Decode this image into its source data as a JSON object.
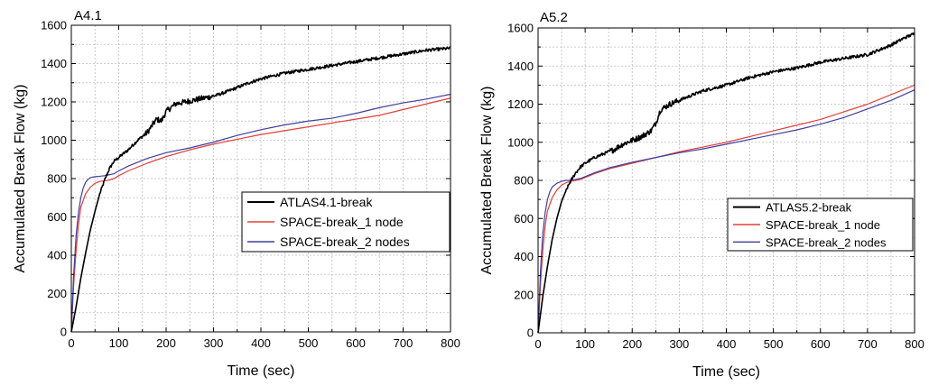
{
  "chart_data": [
    {
      "type": "line",
      "title": "A4.1",
      "xlabel": "Time (sec)",
      "ylabel": "Accumulated Break Flow (kg)",
      "xlim": [
        0,
        800
      ],
      "ylim": [
        0,
        1600
      ],
      "x_ticks": [
        "0",
        "100",
        "200",
        "300",
        "400",
        "500",
        "600",
        "700",
        "800"
      ],
      "y_ticks": [
        "0",
        "200",
        "400",
        "600",
        "800",
        "1000",
        "1200",
        "1400",
        "1600"
      ],
      "grid": true,
      "legend_position": "bottom-right",
      "series": [
        {
          "name": "ATLAS4.1-break",
          "color": "#000000",
          "noisy": true,
          "points": [
            [
              0,
              0
            ],
            [
              10,
              130
            ],
            [
              20,
              280
            ],
            [
              30,
              410
            ],
            [
              40,
              530
            ],
            [
              50,
              630
            ],
            [
              60,
              720
            ],
            [
              70,
              790
            ],
            [
              80,
              850
            ],
            [
              90,
              890
            ],
            [
              100,
              910
            ],
            [
              120,
              950
            ],
            [
              140,
              1000
            ],
            [
              160,
              1040
            ],
            [
              180,
              1110
            ],
            [
              190,
              1100
            ],
            [
              200,
              1150
            ],
            [
              220,
              1190
            ],
            [
              240,
              1200
            ],
            [
              260,
              1210
            ],
            [
              280,
              1220
            ],
            [
              300,
              1230
            ],
            [
              325,
              1250
            ],
            [
              350,
              1275
            ],
            [
              375,
              1300
            ],
            [
              400,
              1320
            ],
            [
              450,
              1350
            ],
            [
              500,
              1370
            ],
            [
              550,
              1390
            ],
            [
              600,
              1410
            ],
            [
              650,
              1430
            ],
            [
              700,
              1450
            ],
            [
              750,
              1470
            ],
            [
              800,
              1480
            ]
          ]
        },
        {
          "name": "SPACE-break_1 node",
          "color": "#e0403a",
          "noisy": false,
          "points": [
            [
              0,
              0
            ],
            [
              5,
              250
            ],
            [
              10,
              420
            ],
            [
              15,
              560
            ],
            [
              20,
              650
            ],
            [
              30,
              720
            ],
            [
              40,
              755
            ],
            [
              50,
              775
            ],
            [
              60,
              785
            ],
            [
              70,
              788
            ],
            [
              80,
              792
            ],
            [
              90,
              800
            ],
            [
              100,
              815
            ],
            [
              120,
              840
            ],
            [
              140,
              860
            ],
            [
              160,
              880
            ],
            [
              200,
              915
            ],
            [
              250,
              950
            ],
            [
              300,
              980
            ],
            [
              350,
              1005
            ],
            [
              400,
              1030
            ],
            [
              450,
              1050
            ],
            [
              500,
              1070
            ],
            [
              550,
              1090
            ],
            [
              600,
              1110
            ],
            [
              650,
              1130
            ],
            [
              700,
              1160
            ],
            [
              750,
              1190
            ],
            [
              800,
              1220
            ]
          ]
        },
        {
          "name": "SPACE-break_2 nodes",
          "color": "#3f3fa0",
          "noisy": false,
          "points": [
            [
              0,
              0
            ],
            [
              5,
              300
            ],
            [
              10,
              500
            ],
            [
              15,
              620
            ],
            [
              20,
              700
            ],
            [
              25,
              750
            ],
            [
              30,
              780
            ],
            [
              35,
              795
            ],
            [
              40,
              805
            ],
            [
              50,
              810
            ],
            [
              60,
              812
            ],
            [
              70,
              815
            ],
            [
              80,
              820
            ],
            [
              90,
              825
            ],
            [
              100,
              840
            ],
            [
              120,
              865
            ],
            [
              140,
              885
            ],
            [
              160,
              905
            ],
            [
              200,
              935
            ],
            [
              250,
              960
            ],
            [
              300,
              990
            ],
            [
              350,
              1025
            ],
            [
              400,
              1055
            ],
            [
              450,
              1080
            ],
            [
              500,
              1100
            ],
            [
              550,
              1115
            ],
            [
              600,
              1140
            ],
            [
              650,
              1170
            ],
            [
              700,
              1195
            ],
            [
              750,
              1215
            ],
            [
              800,
              1240
            ]
          ]
        }
      ]
    },
    {
      "type": "line",
      "title": "A5.2",
      "xlabel": "Time (sec)",
      "ylabel": "Accumulated Break Flow (kg)",
      "xlim": [
        0,
        800
      ],
      "ylim": [
        0,
        1600
      ],
      "x_ticks": [
        "0",
        "100",
        "200",
        "300",
        "400",
        "500",
        "600",
        "700",
        "800"
      ],
      "y_ticks": [
        "0",
        "200",
        "400",
        "600",
        "800",
        "1000",
        "1200",
        "1400",
        "1600"
      ],
      "grid": true,
      "legend_position": "bottom-right",
      "series": [
        {
          "name": "ATLAS5.2-break",
          "color": "#000000",
          "noisy": true,
          "points": [
            [
              0,
              0
            ],
            [
              10,
              190
            ],
            [
              20,
              350
            ],
            [
              30,
              490
            ],
            [
              40,
              600
            ],
            [
              50,
              690
            ],
            [
              60,
              750
            ],
            [
              70,
              800
            ],
            [
              80,
              840
            ],
            [
              90,
              870
            ],
            [
              100,
              890
            ],
            [
              120,
              920
            ],
            [
              140,
              940
            ],
            [
              160,
              960
            ],
            [
              180,
              990
            ],
            [
              200,
              1010
            ],
            [
              220,
              1030
            ],
            [
              240,
              1060
            ],
            [
              250,
              1100
            ],
            [
              260,
              1170
            ],
            [
              280,
              1200
            ],
            [
              300,
              1220
            ],
            [
              350,
              1270
            ],
            [
              400,
              1300
            ],
            [
              450,
              1340
            ],
            [
              500,
              1370
            ],
            [
              550,
              1390
            ],
            [
              600,
              1420
            ],
            [
              650,
              1440
            ],
            [
              700,
              1460
            ],
            [
              720,
              1480
            ],
            [
              750,
              1510
            ],
            [
              780,
              1550
            ],
            [
              800,
              1570
            ]
          ]
        },
        {
          "name": "SPACE-break_1 node",
          "color": "#e0403a",
          "noisy": false,
          "points": [
            [
              0,
              0
            ],
            [
              5,
              250
            ],
            [
              10,
              430
            ],
            [
              15,
              560
            ],
            [
              20,
              640
            ],
            [
              30,
              710
            ],
            [
              40,
              750
            ],
            [
              50,
              775
            ],
            [
              60,
              788
            ],
            [
              70,
              795
            ],
            [
              80,
              800
            ],
            [
              90,
              805
            ],
            [
              100,
              815
            ],
            [
              120,
              835
            ],
            [
              150,
              860
            ],
            [
              200,
              890
            ],
            [
              250,
              920
            ],
            [
              300,
              950
            ],
            [
              350,
              975
            ],
            [
              400,
              1000
            ],
            [
              450,
              1030
            ],
            [
              500,
              1060
            ],
            [
              550,
              1090
            ],
            [
              600,
              1120
            ],
            [
              650,
              1160
            ],
            [
              700,
              1200
            ],
            [
              750,
              1250
            ],
            [
              800,
              1300
            ]
          ]
        },
        {
          "name": "SPACE-break_2 nodes",
          "color": "#3f3fa0",
          "noisy": false,
          "points": [
            [
              0,
              0
            ],
            [
              5,
              320
            ],
            [
              10,
              520
            ],
            [
              15,
              630
            ],
            [
              20,
              700
            ],
            [
              25,
              740
            ],
            [
              30,
              765
            ],
            [
              40,
              785
            ],
            [
              50,
              795
            ],
            [
              60,
              800
            ],
            [
              70,
              800
            ],
            [
              80,
              805
            ],
            [
              90,
              810
            ],
            [
              100,
              820
            ],
            [
              120,
              840
            ],
            [
              150,
              865
            ],
            [
              200,
              895
            ],
            [
              250,
              920
            ],
            [
              300,
              945
            ],
            [
              350,
              965
            ],
            [
              400,
              990
            ],
            [
              450,
              1015
            ],
            [
              500,
              1040
            ],
            [
              550,
              1065
            ],
            [
              600,
              1095
            ],
            [
              650,
              1130
            ],
            [
              700,
              1175
            ],
            [
              750,
              1220
            ],
            [
              800,
              1275
            ]
          ]
        }
      ]
    }
  ]
}
